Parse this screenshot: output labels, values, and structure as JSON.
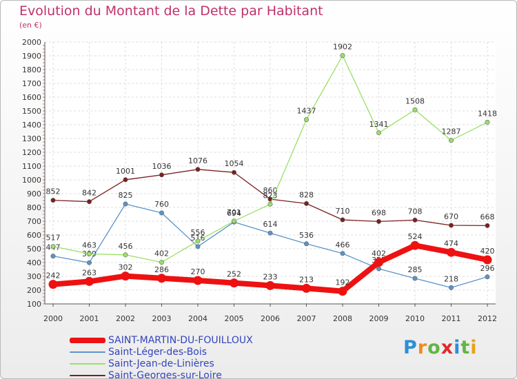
{
  "title": "Evolution du Montant de la Dette par Habitant",
  "unit_label": "(en €)",
  "brand": {
    "letters": [
      "P",
      "r",
      "o",
      "x",
      "i",
      "t",
      "i"
    ],
    "colors": [
      "#2b8fd6",
      "#f08c1a",
      "#62b545",
      "#e2282e",
      "#2b8fd6",
      "#62b545",
      "#e8a21a"
    ]
  },
  "chart_data": {
    "type": "line",
    "title": "Evolution du Montant de la Dette par Habitant",
    "ylabel": "(en €)",
    "xlabel": "",
    "categories": [
      "2000",
      "2001",
      "2002",
      "2003",
      "2004",
      "2005",
      "2006",
      "2007",
      "2008",
      "2009",
      "2010",
      "2011",
      "2012"
    ],
    "ylim": [
      100,
      2000
    ],
    "yticks": [
      "100",
      "200",
      "300",
      "400",
      "500",
      "600",
      "700",
      "800",
      "900",
      "1000",
      "1100",
      "1200",
      "1300",
      "1400",
      "1500",
      "1600",
      "1700",
      "1800",
      "1900",
      "2000"
    ],
    "grid": true,
    "legend_position": "bottom-left",
    "series": [
      {
        "name": "Saint-Georges-sur-Loire",
        "color": "#7a1f1f",
        "values": [
          852,
          842,
          1001,
          1036,
          1076,
          1054,
          860,
          828,
          710,
          698,
          708,
          670,
          668
        ]
      },
      {
        "name": "Saint-Léger-des-Bois",
        "color": "#5b93c7",
        "values": [
          447,
          399,
          825,
          760,
          516,
          694,
          614,
          536,
          466,
          355,
          285,
          218,
          296
        ]
      },
      {
        "name": "Saint-Jean-de-Linières",
        "color": "#99e066",
        "values": [
          517,
          463,
          456,
          402,
          556,
          701,
          823,
          1437,
          1902,
          1341,
          1508,
          1287,
          1418
        ]
      },
      {
        "name": "SAINT-MARTIN-DU-FOUILLOUX",
        "color": "#ee1111",
        "values": [
          242,
          263,
          302,
          286,
          270,
          252,
          233,
          213,
          192,
          402,
          524,
          474,
          420
        ]
      }
    ],
    "data_labels": [
      [
        "852",
        "842",
        "1001",
        "1036",
        "1076",
        "1054",
        "860",
        "828",
        "710",
        "698",
        "708",
        "670",
        "668"
      ],
      [
        "447",
        "399",
        "825",
        "760",
        "516",
        "694",
        "614",
        "536",
        "466",
        "355",
        "285",
        "218",
        "296"
      ],
      [
        "517",
        "463",
        "456",
        "402",
        "556",
        "701",
        "823",
        "1437",
        "1902",
        "1341",
        "1508",
        "1287",
        "1418"
      ],
      [
        "242",
        "263",
        "302",
        "286",
        "270",
        "252",
        "233",
        "213",
        "192",
        "402",
        "524",
        "474",
        "420"
      ]
    ]
  },
  "legend": [
    {
      "label": "SAINT-MARTIN-DU-FOUILLOUX",
      "color": "#ee1111",
      "thick": true
    },
    {
      "label": "Saint-Léger-des-Bois",
      "color": "#5b93c7",
      "thick": false
    },
    {
      "label": "Saint-Jean-de-Linières",
      "color": "#99e066",
      "thick": false
    },
    {
      "label": "Saint-Georges-sur-Loire",
      "color": "#7a1f1f",
      "thick": false
    }
  ]
}
